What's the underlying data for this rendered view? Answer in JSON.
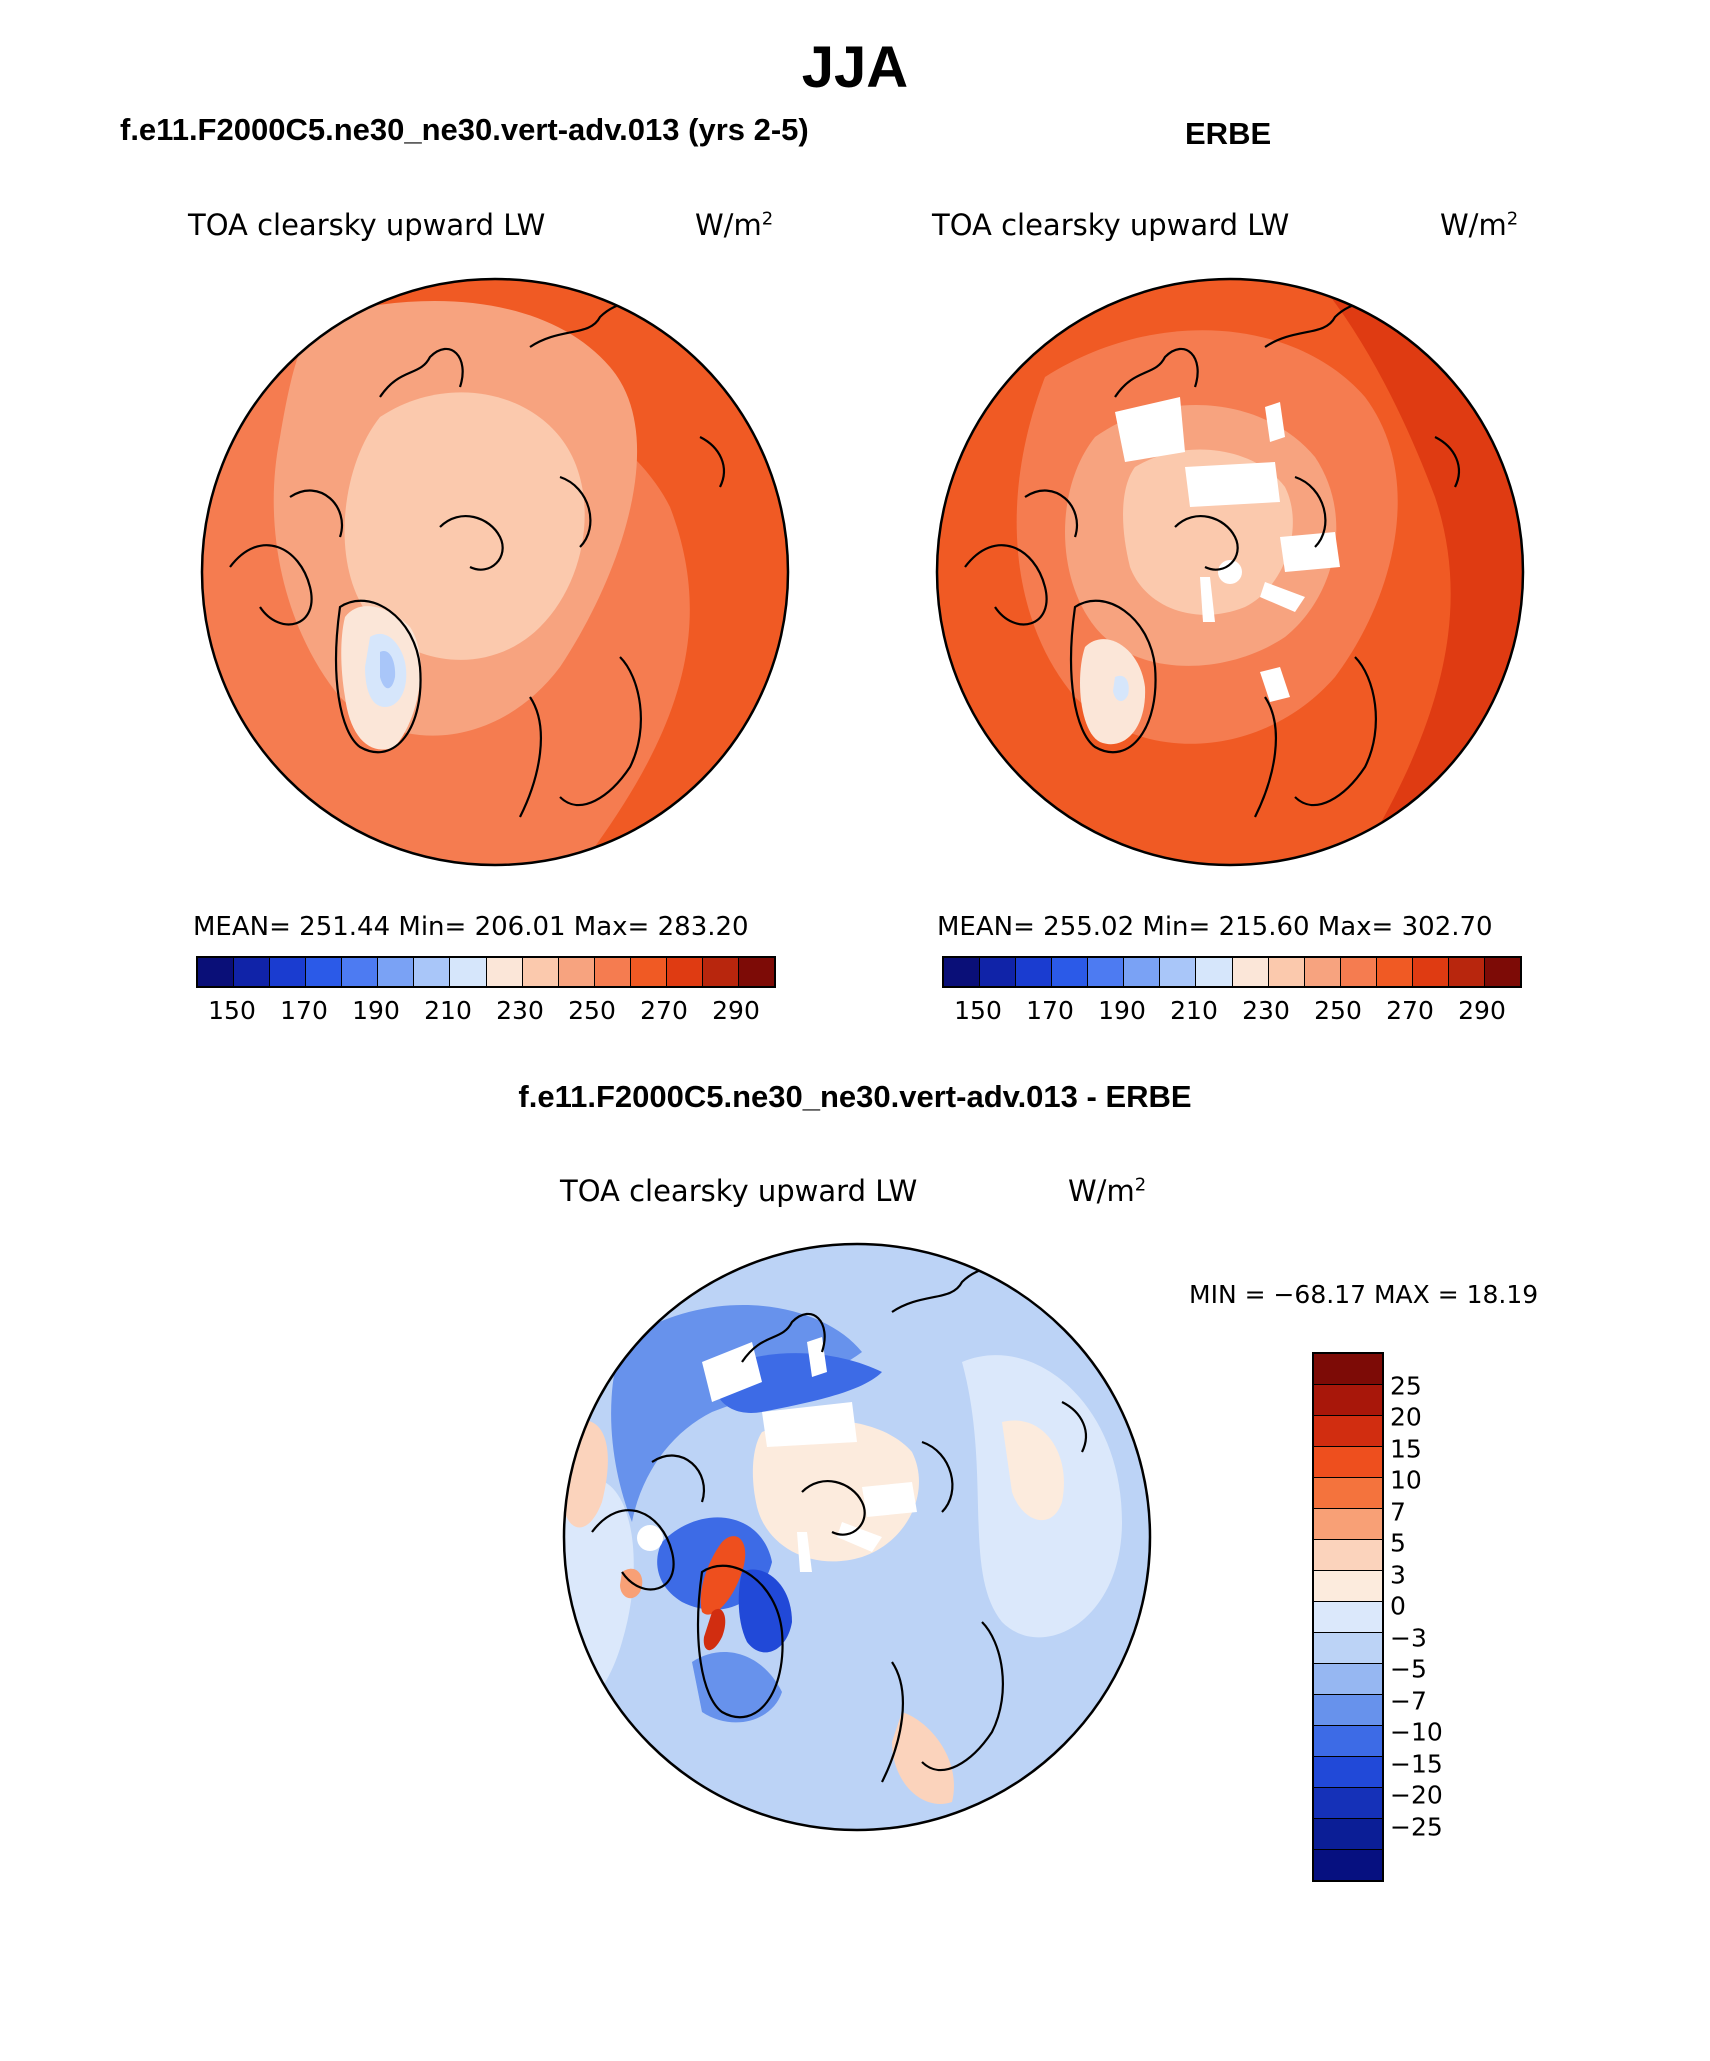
{
  "page_title": "JJA",
  "panels": [
    {
      "heading": "f.e11.F2000C5.ne30_ne30.vert-adv.013 (yrs 2-5)",
      "variable": "TOA clearsky upward LW",
      "units_base": "W/m",
      "units_exp": "2",
      "stats": "MEAN= 251.44   Min= 206.01   Max= 283.20",
      "field": {
        "mean": 251.44,
        "min": 206.01,
        "max": 283.2,
        "has_missing": false
      }
    },
    {
      "heading": "ERBE",
      "variable": "TOA clearsky upward LW",
      "units_base": "W/m",
      "units_exp": "2",
      "stats": "MEAN= 255.02   Min= 215.60   Max= 302.70",
      "field": {
        "mean": 255.02,
        "min": 215.6,
        "max": 302.7,
        "has_missing": true
      }
    }
  ],
  "diff_panel": {
    "heading": "f.e11.F2000C5.ne30_ne30.vert-adv.013 - ERBE",
    "variable": "TOA clearsky upward LW",
    "units_base": "W/m",
    "units_exp": "2",
    "minmax": "MIN = −68.17 MAX =   18.19"
  },
  "abs_colorbar": {
    "colors": [
      "#0a0f78",
      "#1023a8",
      "#1a3cd0",
      "#2b5ae8",
      "#4d7bf2",
      "#7aa2f5",
      "#a9c6f9",
      "#d6e6fb",
      "#fbe6d8",
      "#fbc9ad",
      "#f7a37f",
      "#f57c50",
      "#f05a24",
      "#df3b12",
      "#b8260d",
      "#7d0b06"
    ],
    "tick_labels": [
      "150",
      "170",
      "190",
      "210",
      "230",
      "250",
      "270",
      "290"
    ]
  },
  "diff_colorbar": {
    "colors": [
      "#7d0b06",
      "#a8170a",
      "#d12d10",
      "#ee4f1e",
      "#f4733d",
      "#f8a076",
      "#fbd3bc",
      "#fcebdd",
      "#dbe8fb",
      "#bcd3f6",
      "#96b7f2",
      "#6792ec",
      "#3d6be6",
      "#2149d8",
      "#1531b8",
      "#0b1e96",
      "#061080"
    ],
    "tick_labels": [
      "25",
      "20",
      "15",
      "10",
      "7",
      "5",
      "3",
      "0",
      "−3",
      "−5",
      "−7",
      "−10",
      "−15",
      "−20",
      "−25"
    ]
  }
}
